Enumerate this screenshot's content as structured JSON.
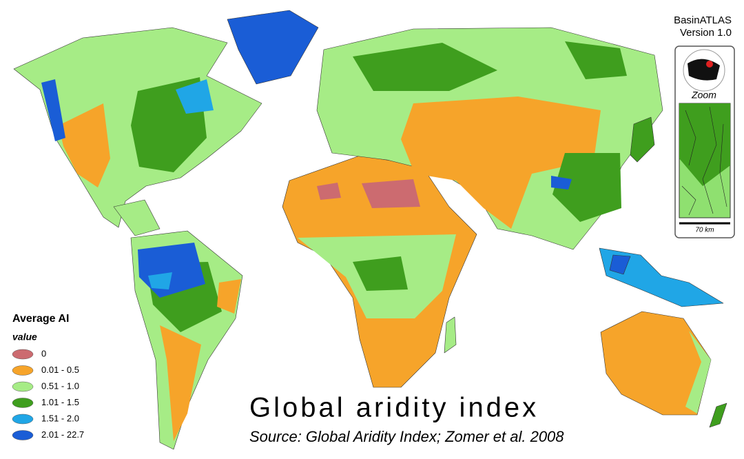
{
  "header": {
    "brand": "BasinATLAS",
    "version": "Version 1.0"
  },
  "title": "Global aridity index",
  "source": "Source: Global Aridity Index; Zomer et al. 2008",
  "inset": {
    "label": "Zoom",
    "scale": "70 km"
  },
  "legend": {
    "title": "Average AI",
    "subtitle": "value",
    "items": [
      {
        "label": "0",
        "color": "#cc6b70"
      },
      {
        "label": "0.01 - 0.5",
        "color": "#f6a42a"
      },
      {
        "label": "0.51 - 1.0",
        "color": "#a6ec86"
      },
      {
        "label": "1.01 - 1.5",
        "color": "#3f9e1e"
      },
      {
        "label": "1.51 - 2.0",
        "color": "#20a6e6"
      },
      {
        "label": "2.01 - 22.7",
        "color": "#1a5dd6"
      }
    ]
  }
}
